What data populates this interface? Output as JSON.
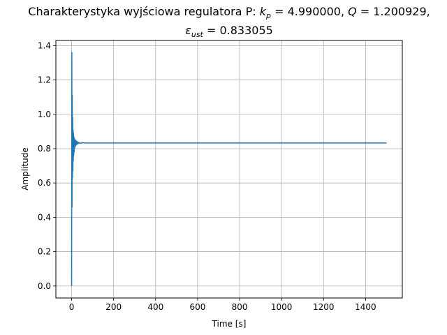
{
  "chart_data": {
    "type": "line",
    "title": {
      "line1_prefix": "Charakterystyka wyjściowa regulatora P: ",
      "kp_symbol": "k",
      "kp_sub": "p",
      "kp_value": " = 4.990000, ",
      "q_symbol": "Q",
      "q_value": " = 1.200929,",
      "eps_symbol": "ε",
      "eps_sub": "ust",
      "eps_value": " = 0.833055"
    },
    "xlabel": "Time [s]",
    "ylabel": "Amplitude",
    "xlim": [
      -75,
      1575
    ],
    "ylim": [
      -0.07,
      1.43
    ],
    "xticks": [
      0,
      200,
      400,
      600,
      800,
      1000,
      1200,
      1400
    ],
    "yticks": [
      0.0,
      0.2,
      0.4,
      0.6,
      0.8,
      1.0,
      1.2,
      1.4
    ],
    "xtick_labels": [
      "0",
      "200",
      "400",
      "600",
      "800",
      "1000",
      "1200",
      "1400"
    ],
    "ytick_labels": [
      "0.0",
      "0.2",
      "0.4",
      "0.6",
      "0.8",
      "1.0",
      "1.2",
      "1.4"
    ],
    "grid": true,
    "series": [
      {
        "color": "#1f77b4",
        "x": [
          0,
          1,
          2,
          3,
          4,
          5,
          6,
          7,
          8,
          9,
          10,
          11,
          12,
          13,
          14,
          15,
          17,
          19,
          21,
          23,
          25,
          28,
          31,
          35,
          40,
          50,
          70,
          100,
          200,
          400,
          600,
          800,
          1000,
          1200,
          1400,
          1500
        ],
        "y": [
          0.0,
          1.36,
          0.46,
          1.11,
          0.63,
          0.98,
          0.67,
          0.91,
          0.73,
          0.89,
          0.76,
          0.87,
          0.78,
          0.86,
          0.8,
          0.85,
          0.81,
          0.85,
          0.82,
          0.845,
          0.825,
          0.84,
          0.828,
          0.837,
          0.831,
          0.834,
          0.833,
          0.833,
          0.833,
          0.833,
          0.833,
          0.833,
          0.833,
          0.833,
          0.833,
          0.833
        ]
      }
    ]
  }
}
